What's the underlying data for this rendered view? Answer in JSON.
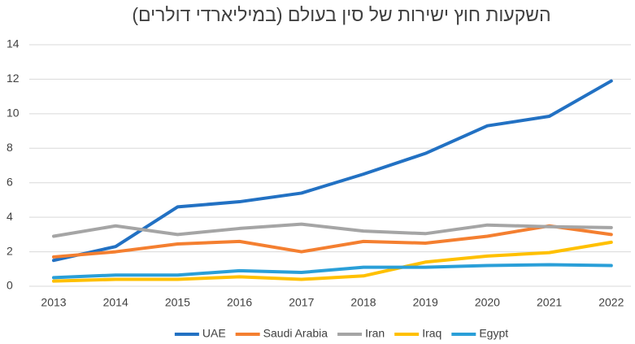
{
  "chart_data": {
    "type": "line",
    "title": "השקעות חוץ ישירות של סין בעולם (במיליארדי דולרים)",
    "categories": [
      "2013",
      "2014",
      "2015",
      "2016",
      "2017",
      "2018",
      "2019",
      "2020",
      "2021",
      "2022"
    ],
    "series": [
      {
        "name": "UAE",
        "color": "#2271c3",
        "values": [
          1.5,
          2.3,
          4.6,
          4.9,
          5.4,
          6.5,
          7.7,
          9.3,
          9.85,
          11.9
        ]
      },
      {
        "name": "Saudi Arabia",
        "color": "#f47f30",
        "values": [
          1.7,
          2.0,
          2.45,
          2.6,
          2.0,
          2.6,
          2.5,
          2.9,
          3.5,
          3.0
        ]
      },
      {
        "name": "Iran",
        "color": "#a5a5a5",
        "values": [
          2.9,
          3.5,
          3.0,
          3.35,
          3.6,
          3.2,
          3.05,
          3.55,
          3.45,
          3.4
        ]
      },
      {
        "name": "Iraq",
        "color": "#ffc000",
        "values": [
          0.3,
          0.4,
          0.4,
          0.55,
          0.4,
          0.6,
          1.4,
          1.75,
          1.95,
          2.55
        ]
      },
      {
        "name": "Egypt",
        "color": "#2a9fd8",
        "values": [
          0.5,
          0.65,
          0.65,
          0.9,
          0.8,
          1.1,
          1.1,
          1.2,
          1.25,
          1.2
        ]
      }
    ],
    "ylim": [
      0,
      14
    ],
    "yticks": [
      0,
      2,
      4,
      6,
      8,
      10,
      12,
      14
    ],
    "grid": true,
    "legend": "bottom"
  }
}
